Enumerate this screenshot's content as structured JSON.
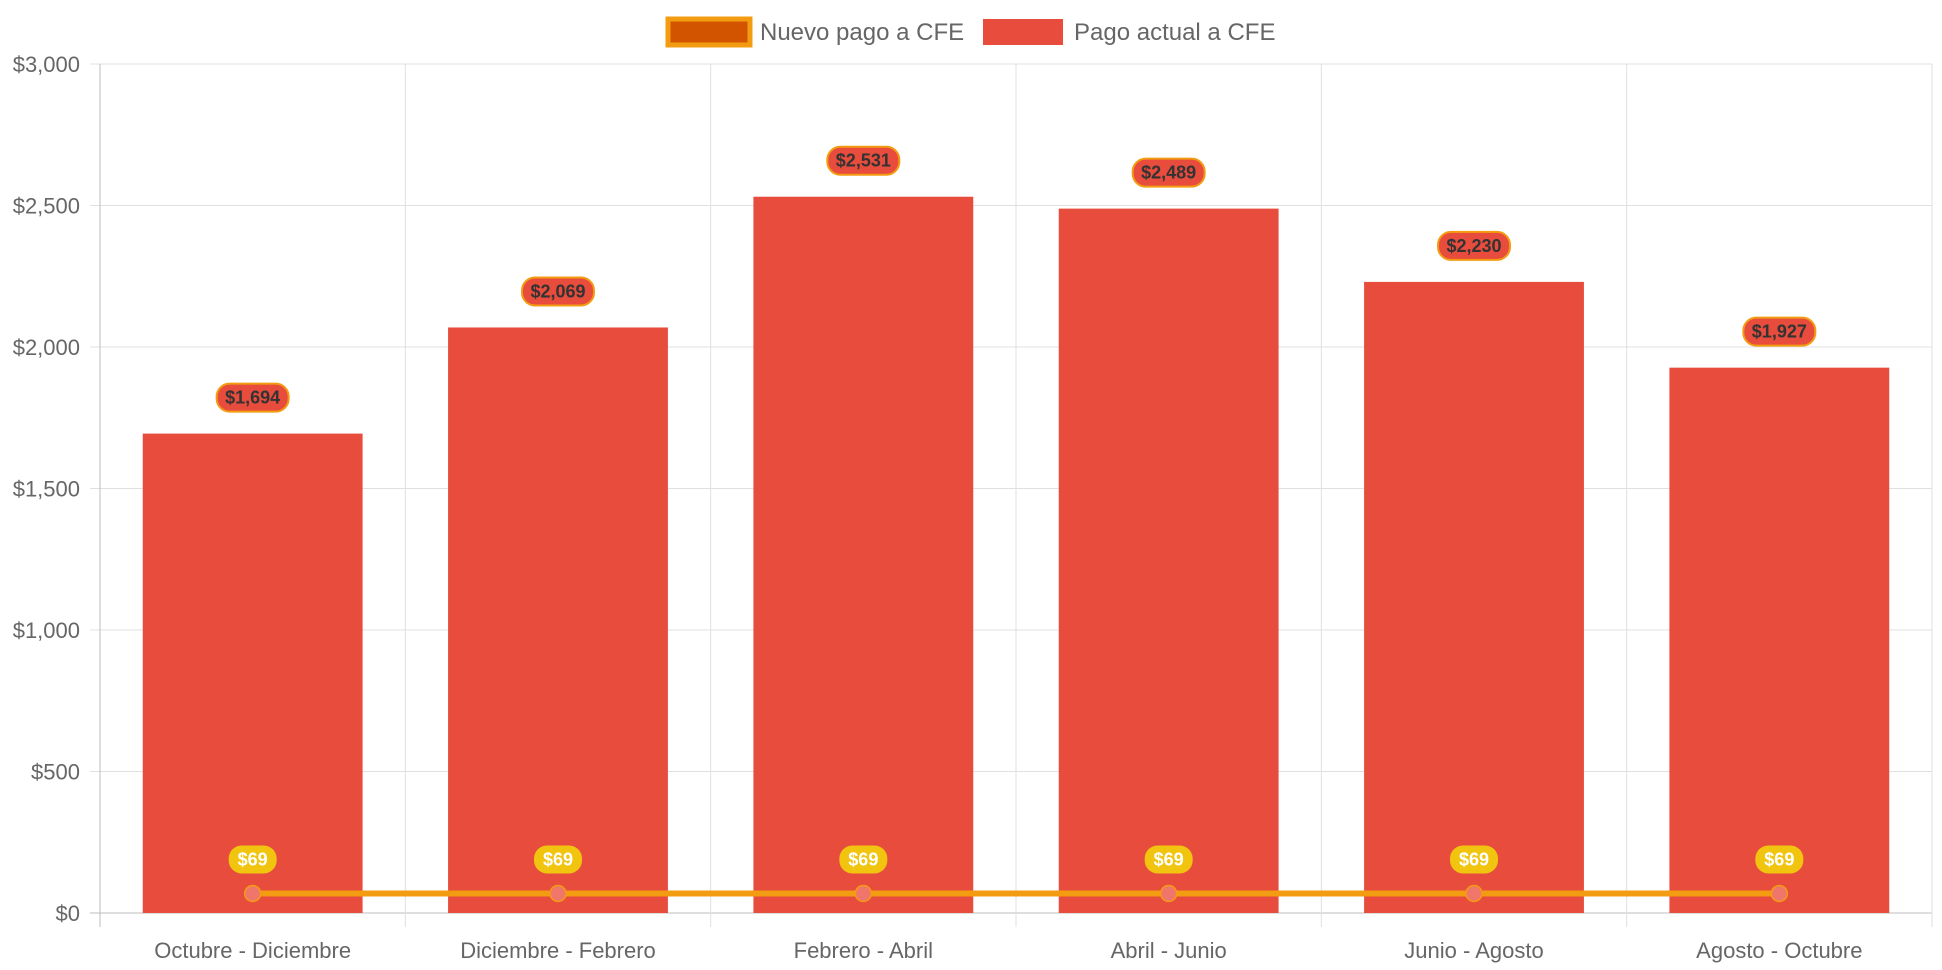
{
  "chart_data": {
    "type": "bar",
    "categories": [
      "Octubre - Diciembre",
      "Diciembre - Febrero",
      "Febrero - Abril",
      "Abril - Junio",
      "Junio - Agosto",
      "Agosto - Octubre"
    ],
    "series": [
      {
        "name": "Nuevo pago a CFE",
        "type": "line",
        "values": [
          69,
          69,
          69,
          69,
          69,
          69
        ],
        "data_labels": [
          "$69",
          "$69",
          "$69",
          "$69",
          "$69",
          "$69"
        ],
        "color": "#f39c12",
        "legend_fill": "#d35400",
        "point_color": "#f0756a",
        "label_bg": "#f1c40f"
      },
      {
        "name": "Pago actual a CFE",
        "type": "bar",
        "values": [
          1694,
          2069,
          2531,
          2489,
          2230,
          1927
        ],
        "data_labels": [
          "$1,694",
          "$2,069",
          "$2,531",
          "$2,489",
          "$2,230",
          "$1,927"
        ],
        "color": "#e74c3c",
        "label_border": "#f39c12"
      }
    ],
    "y_ticks": [
      "$0",
      "$500",
      "$1,000",
      "$1,500",
      "$2,000",
      "$2,500",
      "$3,000"
    ],
    "ylim": [
      0,
      3000
    ],
    "legend_position": "top",
    "grid": true
  }
}
